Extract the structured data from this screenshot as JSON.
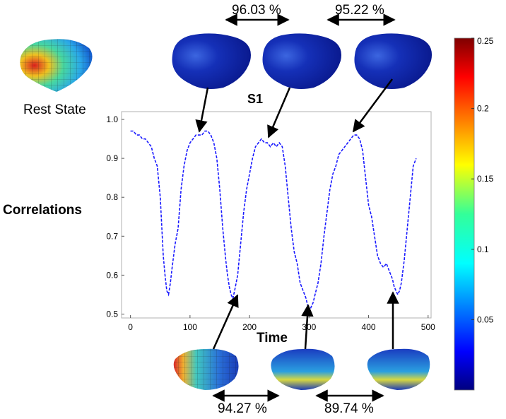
{
  "chart_data": {
    "type": "line",
    "title": "S1",
    "xlabel": "Time",
    "ylabel": "Correlations",
    "xlim": [
      -15,
      505
    ],
    "ylim": [
      0.49,
      1.02
    ],
    "x_ticks": [
      "0",
      "100",
      "200",
      "300",
      "400",
      "500"
    ],
    "y_ticks": [
      "0.5",
      "0.6",
      "0.7",
      "0.8",
      "0.9",
      "1.0"
    ],
    "grid": false,
    "series": [
      {
        "style": "dashed",
        "color": "#1a1aff",
        "x": [
          0,
          5,
          10,
          15,
          20,
          25,
          30,
          35,
          40,
          45,
          50,
          55,
          58,
          61,
          64,
          67,
          70,
          75,
          80,
          85,
          90,
          95,
          100,
          105,
          110,
          115,
          120,
          125,
          130,
          135,
          140,
          145,
          150,
          155,
          160,
          163,
          166,
          169,
          172,
          175,
          180,
          185,
          190,
          195,
          200,
          205,
          210,
          215,
          220,
          225,
          230,
          235,
          240,
          245,
          250,
          255,
          260,
          265,
          270,
          275,
          280,
          285,
          290,
          295,
          298,
          301,
          304,
          307,
          310,
          315,
          320,
          325,
          330,
          335,
          340,
          345,
          350,
          355,
          360,
          365,
          370,
          375,
          380,
          385,
          390,
          395,
          400,
          405,
          410,
          415,
          420,
          425,
          430,
          435,
          440,
          443,
          446,
          449,
          452,
          455,
          460,
          465,
          470,
          475,
          480
        ],
        "y": [
          0.97,
          0.97,
          0.96,
          0.96,
          0.95,
          0.95,
          0.94,
          0.93,
          0.9,
          0.88,
          0.8,
          0.65,
          0.6,
          0.56,
          0.55,
          0.58,
          0.62,
          0.68,
          0.72,
          0.82,
          0.88,
          0.92,
          0.94,
          0.95,
          0.96,
          0.96,
          0.96,
          0.97,
          0.97,
          0.96,
          0.94,
          0.9,
          0.82,
          0.72,
          0.64,
          0.6,
          0.57,
          0.55,
          0.54,
          0.56,
          0.6,
          0.68,
          0.76,
          0.82,
          0.86,
          0.9,
          0.93,
          0.94,
          0.95,
          0.94,
          0.94,
          0.93,
          0.94,
          0.93,
          0.94,
          0.93,
          0.88,
          0.8,
          0.72,
          0.66,
          0.63,
          0.58,
          0.56,
          0.54,
          0.52,
          0.51,
          0.52,
          0.53,
          0.55,
          0.58,
          0.63,
          0.7,
          0.76,
          0.82,
          0.86,
          0.88,
          0.91,
          0.92,
          0.93,
          0.94,
          0.95,
          0.96,
          0.96,
          0.95,
          0.92,
          0.85,
          0.78,
          0.75,
          0.7,
          0.65,
          0.63,
          0.62,
          0.63,
          0.61,
          0.59,
          0.57,
          0.56,
          0.55,
          0.56,
          0.58,
          0.64,
          0.72,
          0.8,
          0.88,
          0.9
        ]
      }
    ]
  },
  "labels": {
    "rest_state": "Rest State",
    "percent_top_1": "96.03 %",
    "percent_top_2": "95.22 %",
    "percent_bottom_1": "94.27 %",
    "percent_bottom_2": "89.74 %"
  },
  "colorbar": {
    "colormap": "jet",
    "ticks": [
      "0.25",
      "0.2",
      "0.15",
      "0.1",
      "0.05"
    ],
    "tick_values": [
      0.25,
      0.2,
      0.15,
      0.1,
      0.05
    ],
    "min": 0.0,
    "max": 0.25
  },
  "colors": {
    "line": "#1a1aff",
    "mesh_low": "#0a1f9e",
    "mesh_high": "#d42020"
  }
}
